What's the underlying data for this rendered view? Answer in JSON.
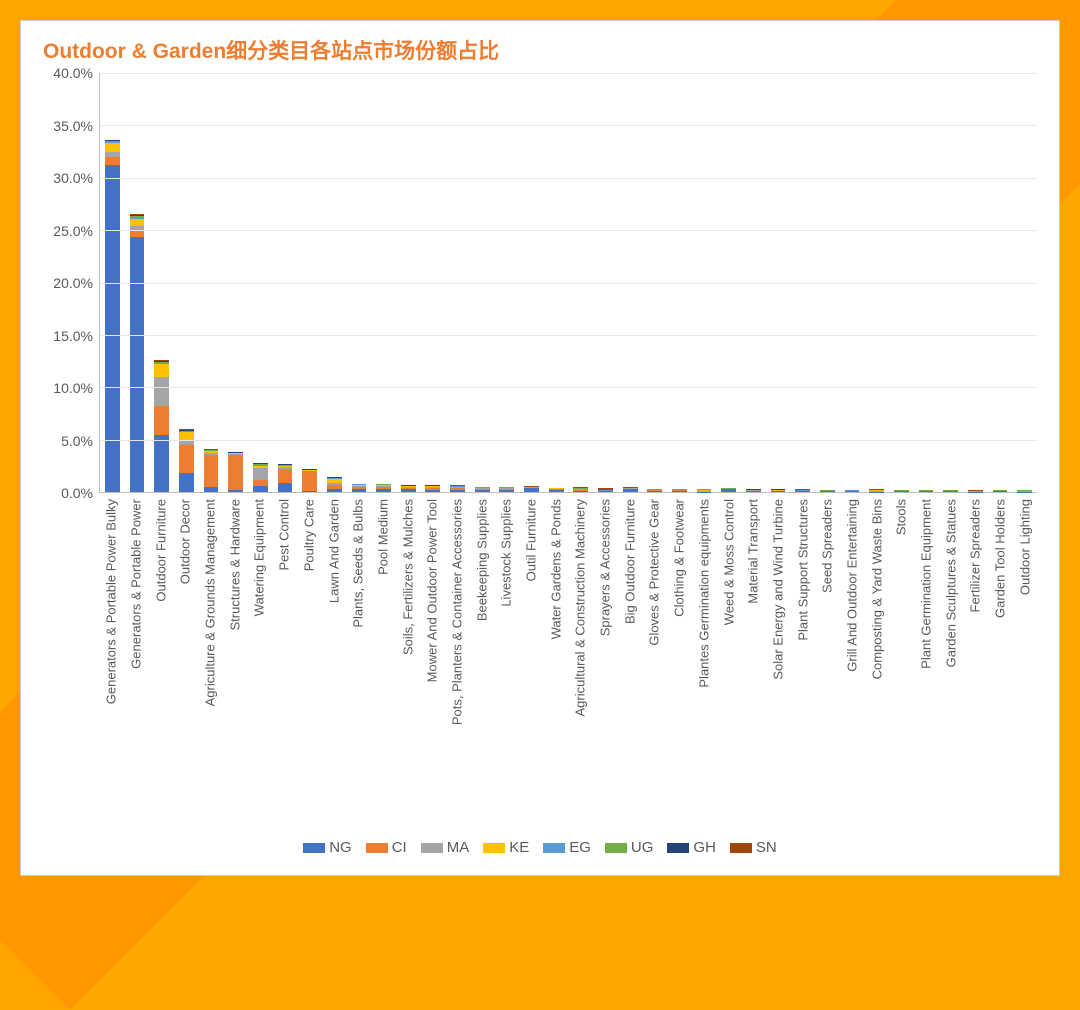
{
  "background_color": "#ffa500",
  "panel": {
    "bg": "#ffffff",
    "border": "#cccccc"
  },
  "chart": {
    "type": "stacked-bar",
    "title": "Outdoor & Garden细分类目各站点市场份额占比",
    "title_color": "#ed7d31",
    "title_fontsize": 21,
    "label_color": "#595959",
    "label_fontsize": 14,
    "xlabel_fontsize": 13,
    "ylim": [
      0,
      40
    ],
    "ytick_step": 5,
    "y_tick_format_suffix": ".0%",
    "grid_color": "#e6e6e6",
    "axis_color": "#bfbfbf",
    "bar_width": 0.6,
    "series": [
      {
        "key": "NG",
        "label": "NG",
        "color": "#4472c4"
      },
      {
        "key": "CI",
        "label": "CI",
        "color": "#ed7d31"
      },
      {
        "key": "MA",
        "label": "MA",
        "color": "#a5a5a5"
      },
      {
        "key": "KE",
        "label": "KE",
        "color": "#ffc000"
      },
      {
        "key": "EG",
        "label": "EG",
        "color": "#5b9bd5"
      },
      {
        "key": "UG",
        "label": "UG",
        "color": "#70ad47"
      },
      {
        "key": "GH",
        "label": "GH",
        "color": "#264478"
      },
      {
        "key": "SN",
        "label": "SN",
        "color": "#9e480e"
      }
    ],
    "categories": [
      "Generators & Portable Power Bulky",
      "Generators & Portable Power",
      "Outdoor Furniture",
      "Outdoor Decor",
      "Agriculture & Grounds Management",
      "Structures & Hardware",
      "Watering Equipment",
      "Pest Control",
      "Poultry Care",
      "Lawn And Garden",
      "Plants, Seeds & Bulbs",
      "Pool Medium",
      "Soils, Fertilizers & Mulches",
      "Mower And Outdoor Power Tool",
      "Pots, Planters & Container Accessories",
      "Beekeeping Supplies",
      "Livestock Supplies",
      "Outil Furniture",
      "Water Gardens & Ponds",
      "Agricultural & Construction Machinery",
      "Sprayers & Accessories",
      "Big Outdoor Furniture",
      "Gloves & Protective Gear",
      "Clothing & Footwear",
      "Plantes Germination equipments",
      "Weed & Moss Control",
      "Material Transport",
      "Solar Energy and Wind Turbine",
      "Plant Support Structures",
      "Seed Spreaders",
      "Grill And Outdoor Entertaining",
      "Composting & Yard Waste Bins",
      "Stools",
      "Plant Germination Equipment",
      "Garden Sculptures & Statues",
      "Fertilizer Spreaders",
      "Garden Tool Holders",
      "Outdoor Lighting"
    ],
    "values": {
      "NG": [
        31.2,
        24.3,
        5.4,
        1.8,
        0.5,
        0.2,
        0.6,
        0.9,
        0.1,
        0.3,
        0.3,
        0.3,
        0.25,
        0.2,
        0.2,
        0.15,
        0.15,
        0.4,
        0.15,
        0.05,
        0.05,
        0.3,
        0.1,
        0.1,
        0.02,
        0.25,
        0.05,
        0.1,
        0.05,
        0.05,
        0.05,
        0.02,
        0.05,
        0.05,
        0.05,
        0.02,
        0.05,
        0.02
      ],
      "CI": [
        0.8,
        0.7,
        2.8,
        2.7,
        3.0,
        3.3,
        0.5,
        1.3,
        1.9,
        0.4,
        0.2,
        0.2,
        0.15,
        0.15,
        0.15,
        0.1,
        0.1,
        0.02,
        0.1,
        0.1,
        0.02,
        0.02,
        0.05,
        0.05,
        0.02,
        0.02,
        0.02,
        0.02,
        0.02,
        0.02,
        0.02,
        0.02,
        0.02,
        0.02,
        0.02,
        0.02,
        0.02,
        0.02
      ],
      "MA": [
        0.5,
        0.4,
        2.8,
        0.5,
        0.2,
        0.1,
        1.2,
        0.2,
        0.05,
        0.15,
        0.1,
        0.1,
        0.1,
        0.1,
        0.1,
        0.1,
        0.1,
        0.02,
        0.05,
        0.1,
        0.05,
        0.02,
        0.05,
        0.05,
        0.02,
        0.02,
        0.1,
        0.02,
        0.05,
        0.02,
        0.05,
        0.02,
        0.02,
        0.02,
        0.02,
        0.02,
        0.02,
        0.02
      ],
      "KE": [
        0.8,
        0.7,
        1.2,
        0.7,
        0.2,
        0.1,
        0.2,
        0.1,
        0.05,
        0.4,
        0.1,
        0.05,
        0.05,
        0.1,
        0.05,
        0.05,
        0.05,
        0.02,
        0.05,
        0.05,
        0.02,
        0.02,
        0.02,
        0.02,
        0.15,
        0.02,
        0.02,
        0.05,
        0.02,
        0.02,
        0.02,
        0.12,
        0.02,
        0.02,
        0.02,
        0.02,
        0.02,
        0.05
      ],
      "EG": [
        0.1,
        0.1,
        0.1,
        0.1,
        0.05,
        0.05,
        0.1,
        0.05,
        0.02,
        0.05,
        0.05,
        0.05,
        0.02,
        0.05,
        0.05,
        0.02,
        0.02,
        0.02,
        0.02,
        0.02,
        0.02,
        0.02,
        0.02,
        0.02,
        0.02,
        0.02,
        0.02,
        0.02,
        0.05,
        0.02,
        0.02,
        0.02,
        0.02,
        0.02,
        0.02,
        0.02,
        0.02,
        0.02
      ],
      "UG": [
        0.1,
        0.15,
        0.1,
        0.05,
        0.05,
        0.02,
        0.05,
        0.05,
        0.02,
        0.05,
        0.02,
        0.02,
        0.02,
        0.02,
        0.02,
        0.02,
        0.02,
        0.02,
        0.02,
        0.02,
        0.02,
        0.02,
        0.02,
        0.02,
        0.02,
        0.02,
        0.02,
        0.02,
        0.02,
        0.02,
        0.02,
        0.02,
        0.02,
        0.02,
        0.02,
        0.02,
        0.02,
        0.02
      ],
      "GH": [
        0.1,
        0.1,
        0.15,
        0.1,
        0.05,
        0.02,
        0.1,
        0.05,
        0.02,
        0.05,
        0.02,
        0.02,
        0.05,
        0.02,
        0.02,
        0.05,
        0.02,
        0.02,
        0.02,
        0.02,
        0.02,
        0.02,
        0.02,
        0.02,
        0.02,
        0.02,
        0.02,
        0.02,
        0.02,
        0.02,
        0.02,
        0.02,
        0.05,
        0.02,
        0.02,
        0.02,
        0.02,
        0.02
      ],
      "SN": [
        0.05,
        0.05,
        0.1,
        0.05,
        0.05,
        0.02,
        0.05,
        0.02,
        0.02,
        0.05,
        0.02,
        0.02,
        0.02,
        0.02,
        0.05,
        0.02,
        0.02,
        0.02,
        0.02,
        0.1,
        0.2,
        0.02,
        0.02,
        0.02,
        0.02,
        0.02,
        0.02,
        0.02,
        0.02,
        0.02,
        0.02,
        0.02,
        0.02,
        0.02,
        0.02,
        0.05,
        0.02,
        0.02
      ]
    }
  }
}
